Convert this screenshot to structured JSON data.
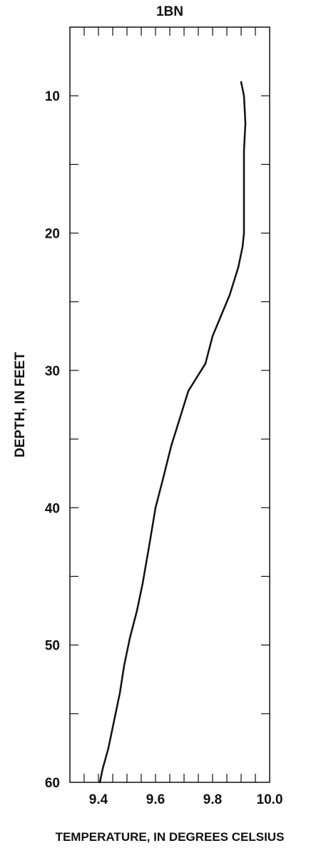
{
  "chart_data": {
    "type": "line",
    "title": "1BN",
    "xlabel": "TEMPERATURE, IN DEGREES CELSIUS",
    "ylabel": "DEPTH, IN FEET",
    "xlim": [
      9.3,
      10.0
    ],
    "ylim": [
      60,
      5
    ],
    "y_inverted": true,
    "grid": false,
    "x_ticks": [
      9.4,
      9.6,
      9.8,
      10.0
    ],
    "x_tick_labels": [
      "9.4",
      "9.6",
      "9.8",
      "10.0"
    ],
    "x_minor_ticks": [
      9.3,
      9.35,
      9.45,
      9.5,
      9.55,
      9.65,
      9.7,
      9.75,
      9.85,
      9.9,
      9.95
    ],
    "y_ticks": [
      10,
      20,
      30,
      40,
      50,
      60
    ],
    "y_tick_labels": [
      "10",
      "20",
      "30",
      "40",
      "50",
      "60"
    ],
    "y_minor_ticks": [
      15,
      25,
      35,
      45,
      55
    ],
    "series": [
      {
        "x": [
          9.9,
          9.91,
          9.915,
          9.91,
          9.91,
          9.91,
          9.91,
          9.905,
          9.89,
          9.86,
          9.83,
          9.8,
          9.775,
          9.745,
          9.715,
          9.685,
          9.655,
          9.625,
          9.6,
          9.58,
          9.555,
          9.535,
          9.51,
          9.49,
          9.475,
          9.455,
          9.435,
          9.415,
          9.405
        ],
        "y": [
          9,
          10,
          12,
          14,
          15,
          18,
          20,
          21,
          22.5,
          24.5,
          26,
          27.5,
          29.5,
          30.5,
          31.5,
          33.5,
          35.5,
          38,
          40,
          42.5,
          45.5,
          47.5,
          49.5,
          51.5,
          53.5,
          55.5,
          57.5,
          59,
          60
        ]
      }
    ]
  }
}
